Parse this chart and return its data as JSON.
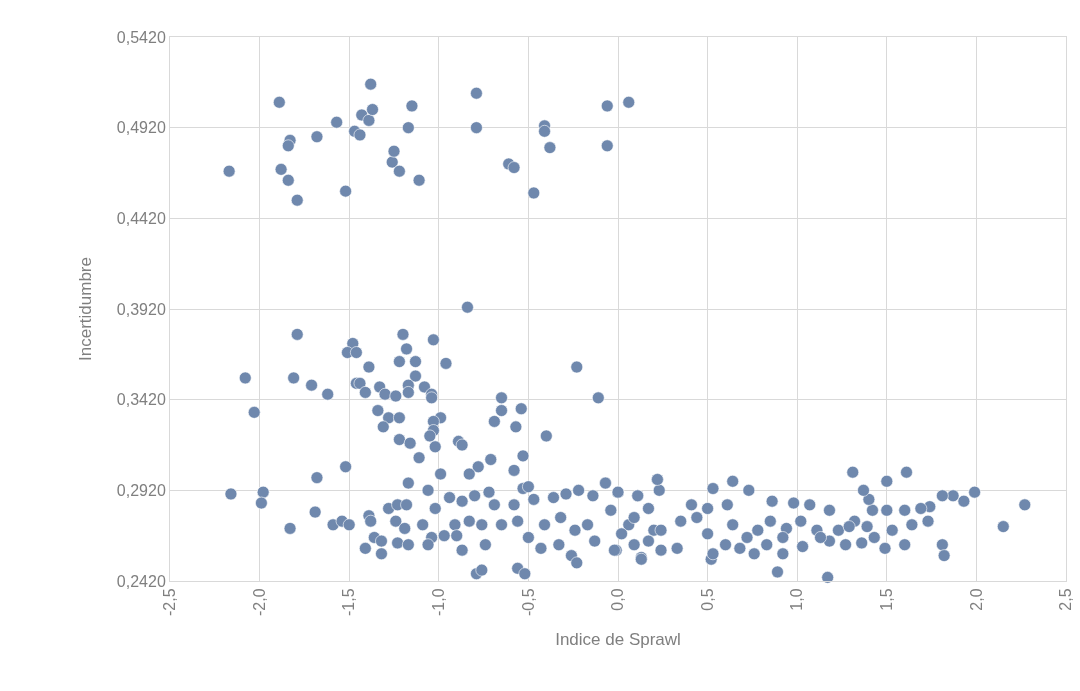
{
  "chart_data": {
    "type": "scatter",
    "xlabel": "Indice de Sprawl",
    "ylabel": "Incertidumbre",
    "xlim": [
      -2.5,
      2.5
    ],
    "ylim": [
      0.242,
      0.542
    ],
    "xticks": [
      {
        "value": -2.5,
        "label": "-2,5"
      },
      {
        "value": -2,
        "label": "-2,0"
      },
      {
        "value": -1.5,
        "label": "-1,5"
      },
      {
        "value": -1,
        "label": "-1,0"
      },
      {
        "value": -0.5,
        "label": "-0,5"
      },
      {
        "value": 0,
        "label": "0,0"
      },
      {
        "value": 0.5,
        "label": "0,5"
      },
      {
        "value": 1,
        "label": "1,0"
      },
      {
        "value": 1.5,
        "label": "1,5"
      },
      {
        "value": 2,
        "label": "2,0"
      },
      {
        "value": 2.5,
        "label": "2,5"
      }
    ],
    "yticks": [
      {
        "value": 0.242,
        "label": "0,2420"
      },
      {
        "value": 0.292,
        "label": "0,2920"
      },
      {
        "value": 0.342,
        "label": "0,3420"
      },
      {
        "value": 0.392,
        "label": "0,3920"
      },
      {
        "value": 0.442,
        "label": "0,4420"
      },
      {
        "value": 0.492,
        "label": "0,4920"
      },
      {
        "value": 0.542,
        "label": "0,5420"
      }
    ],
    "grid": true,
    "marker": "circle",
    "series": [
      {
        "color": "#6f88ad",
        "x": [
          -2.17,
          -1.89,
          -1.88,
          -1.84,
          -1.83,
          -1.84,
          -1.79,
          -1.68,
          -1.57,
          -1.52,
          -1.47,
          -1.44,
          -1.43,
          -1.38,
          -1.39,
          -1.37,
          -1.26,
          -1.25,
          -1.22,
          -1.17,
          -1.15,
          -1.11,
          -0.79,
          -0.79,
          -0.61,
          -0.58,
          -0.47,
          -0.41,
          -0.41,
          -0.38,
          -0.06,
          -0.06,
          0.06,
          -0.84,
          -1.79,
          -1.48,
          -1.51,
          -1.46,
          -1.2,
          -1.18,
          -1.03,
          -1.22,
          -1.13,
          -0.96,
          -1.39,
          -1.13,
          -2.08,
          -1.81,
          -1.71,
          -1.62,
          -1.46,
          -1.44,
          -1.41,
          -1.33,
          -1.3,
          -1.24,
          -1.17,
          -1.17,
          -1.08,
          -1.04,
          -1.04,
          -0.23,
          -0.11,
          -2.03,
          -1.34,
          -1.28,
          -1.22,
          -1.31,
          -0.99,
          -1.03,
          -1.03,
          -1.05,
          -1.22,
          -1.16,
          -1.02,
          -1.11,
          -0.89,
          -0.87,
          -0.65,
          -0.65,
          -0.54,
          -0.69,
          -0.57,
          -0.4,
          -0.71,
          -0.78,
          -0.53,
          -0.58,
          -0.83,
          -0.99,
          -1.52,
          -1.68,
          -1.17,
          -2.16,
          -1.98,
          -1.99,
          -1.69,
          -1.83,
          -1.59,
          -1.54,
          -1.5,
          -1.41,
          -1.32,
          -1.39,
          -1.38,
          -1.36,
          -1.32,
          -1.23,
          -1.17,
          -0.87,
          -0.79,
          -0.76,
          -0.56,
          -0.52,
          -1.06,
          -1.28,
          -1.23,
          -1.18,
          -1.24,
          -1.19,
          -1.09,
          -1.02,
          -1.04,
          -1.06,
          -0.97,
          -0.94,
          -0.87,
          -0.8,
          -0.91,
          -0.83,
          -0.9,
          -0.72,
          -0.69,
          -0.76,
          -0.74,
          -0.65,
          -0.58,
          -0.53,
          -0.5,
          -0.47,
          -0.56,
          -0.5,
          -0.43,
          -0.36,
          -0.29,
          -0.22,
          -0.14,
          -0.07,
          0.0,
          0.11,
          0.22,
          -0.41,
          -0.32,
          -0.24,
          -0.26,
          -0.23,
          -0.33,
          -0.17,
          -0.13,
          -0.04,
          -0.01,
          0.06,
          0.09,
          0.13,
          0.17,
          0.2,
          1.31,
          1.5,
          1.61,
          2.27,
          2.15,
          1.99,
          1.93,
          1.87,
          1.81,
          1.81,
          1.82,
          1.74,
          1.69,
          1.73,
          1.64,
          1.6,
          1.6,
          1.5,
          1.53,
          1.49,
          1.42,
          1.4,
          1.37,
          1.43,
          1.39,
          1.32,
          1.27,
          1.36,
          1.23,
          1.17,
          1.18,
          1.18,
          1.07,
          0.98,
          1.03,
          0.89,
          0.92,
          0.86,
          0.73,
          0.64,
          0.53,
          0.23,
          0.22,
          0.11,
          0.0,
          -0.07,
          0.52,
          0.53,
          0.13,
          0.76,
          0.6,
          0.68,
          0.33,
          0.24,
          -0.02,
          0.41,
          0.5,
          0.61,
          0.85,
          0.94,
          1.11,
          1.02,
          0.78,
          0.64,
          0.5,
          0.35,
          0.24,
          0.09,
          0.02,
          0.72,
          0.92,
          0.44,
          0.17,
          0.83,
          1.13,
          1.29
        ],
        "values": [
          0.468,
          0.506,
          0.469,
          0.463,
          0.485,
          0.482,
          0.452,
          0.487,
          0.495,
          0.457,
          0.49,
          0.488,
          0.499,
          0.516,
          0.496,
          0.502,
          0.473,
          0.479,
          0.468,
          0.492,
          0.504,
          0.463,
          0.511,
          0.492,
          0.472,
          0.47,
          0.456,
          0.493,
          0.49,
          0.481,
          0.504,
          0.482,
          0.506,
          0.393,
          0.378,
          0.373,
          0.368,
          0.368,
          0.378,
          0.37,
          0.375,
          0.363,
          0.363,
          0.362,
          0.36,
          0.355,
          0.354,
          0.354,
          0.35,
          0.345,
          0.351,
          0.351,
          0.346,
          0.349,
          0.345,
          0.344,
          0.35,
          0.346,
          0.349,
          0.345,
          0.343,
          0.36,
          0.343,
          0.335,
          0.336,
          0.332,
          0.332,
          0.327,
          0.332,
          0.33,
          0.325,
          0.322,
          0.32,
          0.318,
          0.316,
          0.31,
          0.319,
          0.317,
          0.343,
          0.336,
          0.337,
          0.33,
          0.327,
          0.322,
          0.309,
          0.305,
          0.311,
          0.303,
          0.301,
          0.301,
          0.305,
          0.299,
          0.296,
          0.29,
          0.291,
          0.285,
          0.28,
          0.271,
          0.273,
          0.275,
          0.273,
          0.26,
          0.257,
          0.278,
          0.275,
          0.266,
          0.264,
          0.263,
          0.262,
          0.259,
          0.246,
          0.248,
          0.249,
          0.246,
          0.292,
          0.282,
          0.284,
          0.284,
          0.275,
          0.271,
          0.273,
          0.282,
          0.266,
          0.262,
          0.267,
          0.288,
          0.286,
          0.289,
          0.273,
          0.275,
          0.267,
          0.291,
          0.284,
          0.273,
          0.262,
          0.273,
          0.284,
          0.293,
          0.294,
          0.287,
          0.275,
          0.266,
          0.26,
          0.288,
          0.29,
          0.292,
          0.289,
          0.296,
          0.291,
          0.289,
          0.298,
          0.273,
          0.277,
          0.27,
          0.256,
          0.252,
          0.262,
          0.273,
          0.264,
          0.281,
          0.259,
          0.273,
          0.262,
          0.255,
          0.282,
          0.27,
          0.302,
          0.297,
          0.302,
          0.284,
          0.272,
          0.291,
          0.286,
          0.289,
          0.289,
          0.262,
          0.256,
          0.283,
          0.282,
          0.275,
          0.273,
          0.281,
          0.262,
          0.281,
          0.27,
          0.26,
          0.281,
          0.287,
          0.292,
          0.266,
          0.272,
          0.275,
          0.262,
          0.263,
          0.27,
          0.244,
          0.281,
          0.264,
          0.284,
          0.285,
          0.261,
          0.247,
          0.257,
          0.286,
          0.292,
          0.297,
          0.293,
          0.292,
          0.298,
          0.289,
          0.291,
          0.296,
          0.254,
          0.257,
          0.254,
          0.257,
          0.262,
          0.26,
          0.26,
          0.259,
          0.259,
          0.284,
          0.282,
          0.284,
          0.275,
          0.271,
          0.27,
          0.275,
          0.27,
          0.273,
          0.268,
          0.275,
          0.27,
          0.277,
          0.268,
          0.266,
          0.266,
          0.277,
          0.264,
          0.262,
          0.266,
          0.272
        ]
      }
    ]
  }
}
